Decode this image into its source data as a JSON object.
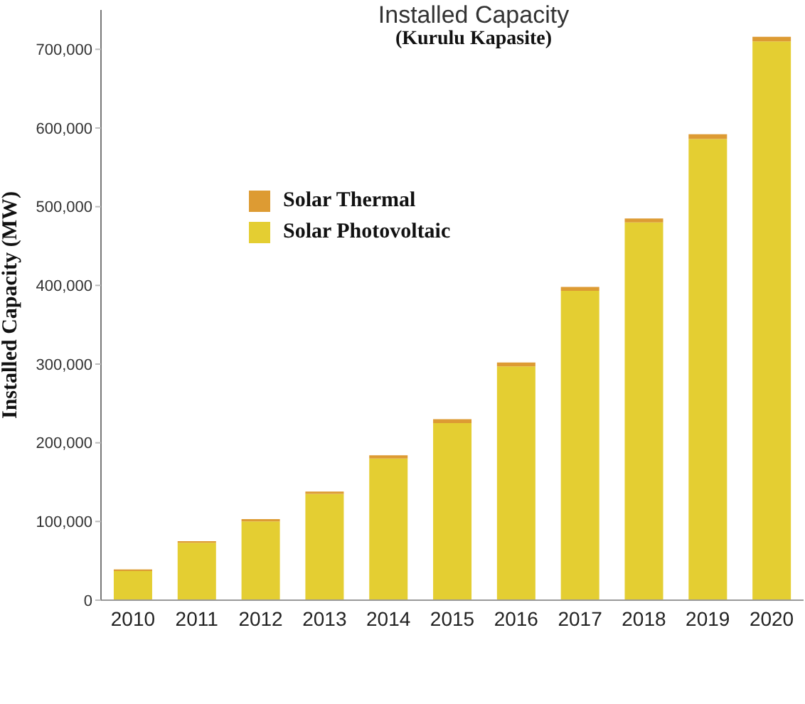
{
  "chart_data": {
    "type": "bar",
    "title": "Installed Capacity",
    "subtitle": "(Kurulu Kapasite)",
    "ylabel": "Installed Capacity (MW)",
    "categories": [
      "2010",
      "2011",
      "2012",
      "2013",
      "2014",
      "2015",
      "2016",
      "2017",
      "2018",
      "2019",
      "2020"
    ],
    "stacked": true,
    "series": [
      {
        "name": "Solar Photovoltaic",
        "color": "#e4ce32",
        "values": [
          37000,
          73000,
          100000,
          135000,
          180000,
          225000,
          297000,
          393000,
          480000,
          586000,
          710000
        ]
      },
      {
        "name": "Solar Thermal",
        "color": "#dd9b33",
        "values": [
          2000,
          2000,
          3000,
          3000,
          4000,
          5000,
          5000,
          5000,
          5000,
          6000,
          6000
        ]
      }
    ],
    "ylim": [
      0,
      750000
    ],
    "yticks": [
      0,
      {
        "value": 100000,
        "label": "100,000"
      },
      {
        "value": 200000,
        "label": "200,000"
      },
      {
        "value": 300000,
        "label": "300,000"
      },
      {
        "value": 400000,
        "label": "400,000"
      },
      {
        "value": 500000,
        "label": "500,000"
      },
      {
        "value": 600000,
        "label": "600,000"
      },
      {
        "value": 700000,
        "label": "700,000"
      }
    ],
    "legend": "top left"
  }
}
